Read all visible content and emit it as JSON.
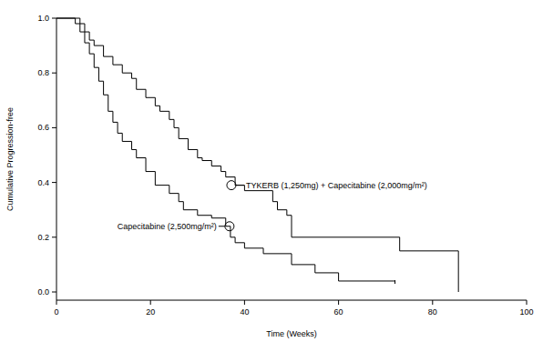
{
  "chart_data": {
    "type": "step",
    "x_label": "Time (Weeks)",
    "y_label": "Cumulative Progression-free",
    "xlim": [
      0,
      100
    ],
    "ylim": [
      -0.03,
      1.0
    ],
    "xticks": [
      0,
      20,
      40,
      60,
      80,
      100
    ],
    "yticks": [
      {
        "value": 0,
        "label": "0.0"
      },
      {
        "value": 0.2,
        "label": "0.2"
      },
      {
        "value": 0.4,
        "label": "0.4"
      },
      {
        "value": 0.6,
        "label": "0.6"
      },
      {
        "value": 0.8,
        "label": "0.8"
      },
      {
        "value": 1,
        "label": "1.0"
      }
    ],
    "grid": false,
    "series": [
      {
        "color": "#000000",
        "line_style": "solid",
        "x": [
          0,
          5,
          6,
          7,
          8,
          10,
          12,
          14,
          16,
          17,
          19,
          21,
          22,
          24,
          25,
          26,
          28,
          30,
          31,
          33,
          35,
          36,
          38,
          40,
          46,
          47,
          49,
          50,
          73,
          85.5
        ],
        "values": [
          1.0,
          0.98,
          0.95,
          0.92,
          0.9,
          0.86,
          0.83,
          0.8,
          0.78,
          0.74,
          0.71,
          0.68,
          0.66,
          0.63,
          0.6,
          0.56,
          0.52,
          0.49,
          0.48,
          0.46,
          0.44,
          0.42,
          0.39,
          0.37,
          0.33,
          0.3,
          0.28,
          0.2,
          0.15,
          0.0
        ]
      },
      {
        "color": "#000000",
        "line_style": "solid",
        "x": [
          0,
          4,
          5,
          6,
          7,
          8,
          9,
          10,
          11,
          12,
          13,
          14,
          16,
          17,
          19,
          21,
          24,
          26,
          27,
          30,
          33,
          36,
          37,
          38,
          40,
          44,
          50,
          55,
          60,
          72
        ],
        "values": [
          1.0,
          0.98,
          0.95,
          0.91,
          0.87,
          0.82,
          0.77,
          0.72,
          0.66,
          0.62,
          0.58,
          0.55,
          0.52,
          0.49,
          0.44,
          0.39,
          0.36,
          0.33,
          0.3,
          0.28,
          0.27,
          0.24,
          0.2,
          0.18,
          0.16,
          0.14,
          0.1,
          0.07,
          0.04,
          0.03
        ]
      }
    ],
    "annotations": [
      {
        "text": "TYKERB (1,250mg) + Capecitabine (2,000mg/m²)",
        "x": 37.2,
        "y": 0.39
      },
      {
        "text": "Capecitabine (2,500mg/m²)",
        "x": 36.8,
        "y": 0.24
      }
    ]
  }
}
